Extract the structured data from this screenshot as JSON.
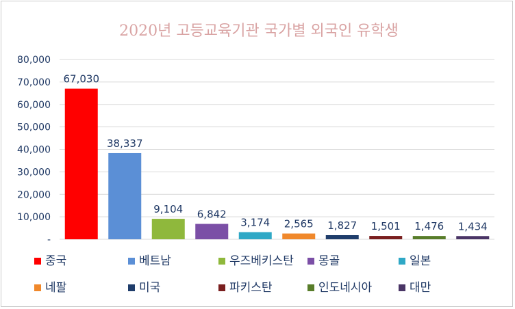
{
  "chart_data": {
    "type": "bar",
    "title": "2020년 고등교육기관 국가별 외국인 유학생",
    "categories": [
      "중국",
      "베트남",
      "우즈베키스탄",
      "몽골",
      "일본",
      "네팔",
      "미국",
      "파키스탄",
      "인도네시아",
      "대만"
    ],
    "values": [
      67030,
      38337,
      9104,
      6842,
      3174,
      2565,
      1827,
      1501,
      1476,
      1434
    ],
    "data_labels": [
      "67,030",
      "38,337",
      "9,104",
      "6,842",
      "3,174",
      "2,565",
      "1,827",
      "1,501",
      "1,476",
      "1,434"
    ],
    "colors": [
      "#ff0000",
      "#5b8fd6",
      "#8fb83c",
      "#7b4fa6",
      "#2fa8c6",
      "#f0882b",
      "#1f3d6b",
      "#7a1f1f",
      "#587d2a",
      "#4a3566"
    ],
    "ylim": [
      0,
      80000
    ],
    "yticks": [
      0,
      10000,
      20000,
      30000,
      40000,
      50000,
      60000,
      70000,
      80000
    ],
    "ytick_labels": [
      "-",
      "10,000",
      "20,000",
      "30,000",
      "40,000",
      "50,000",
      "60,000",
      "70,000",
      "80,000"
    ],
    "grid": true,
    "legend_position": "bottom",
    "xlabel": "",
    "ylabel": ""
  }
}
